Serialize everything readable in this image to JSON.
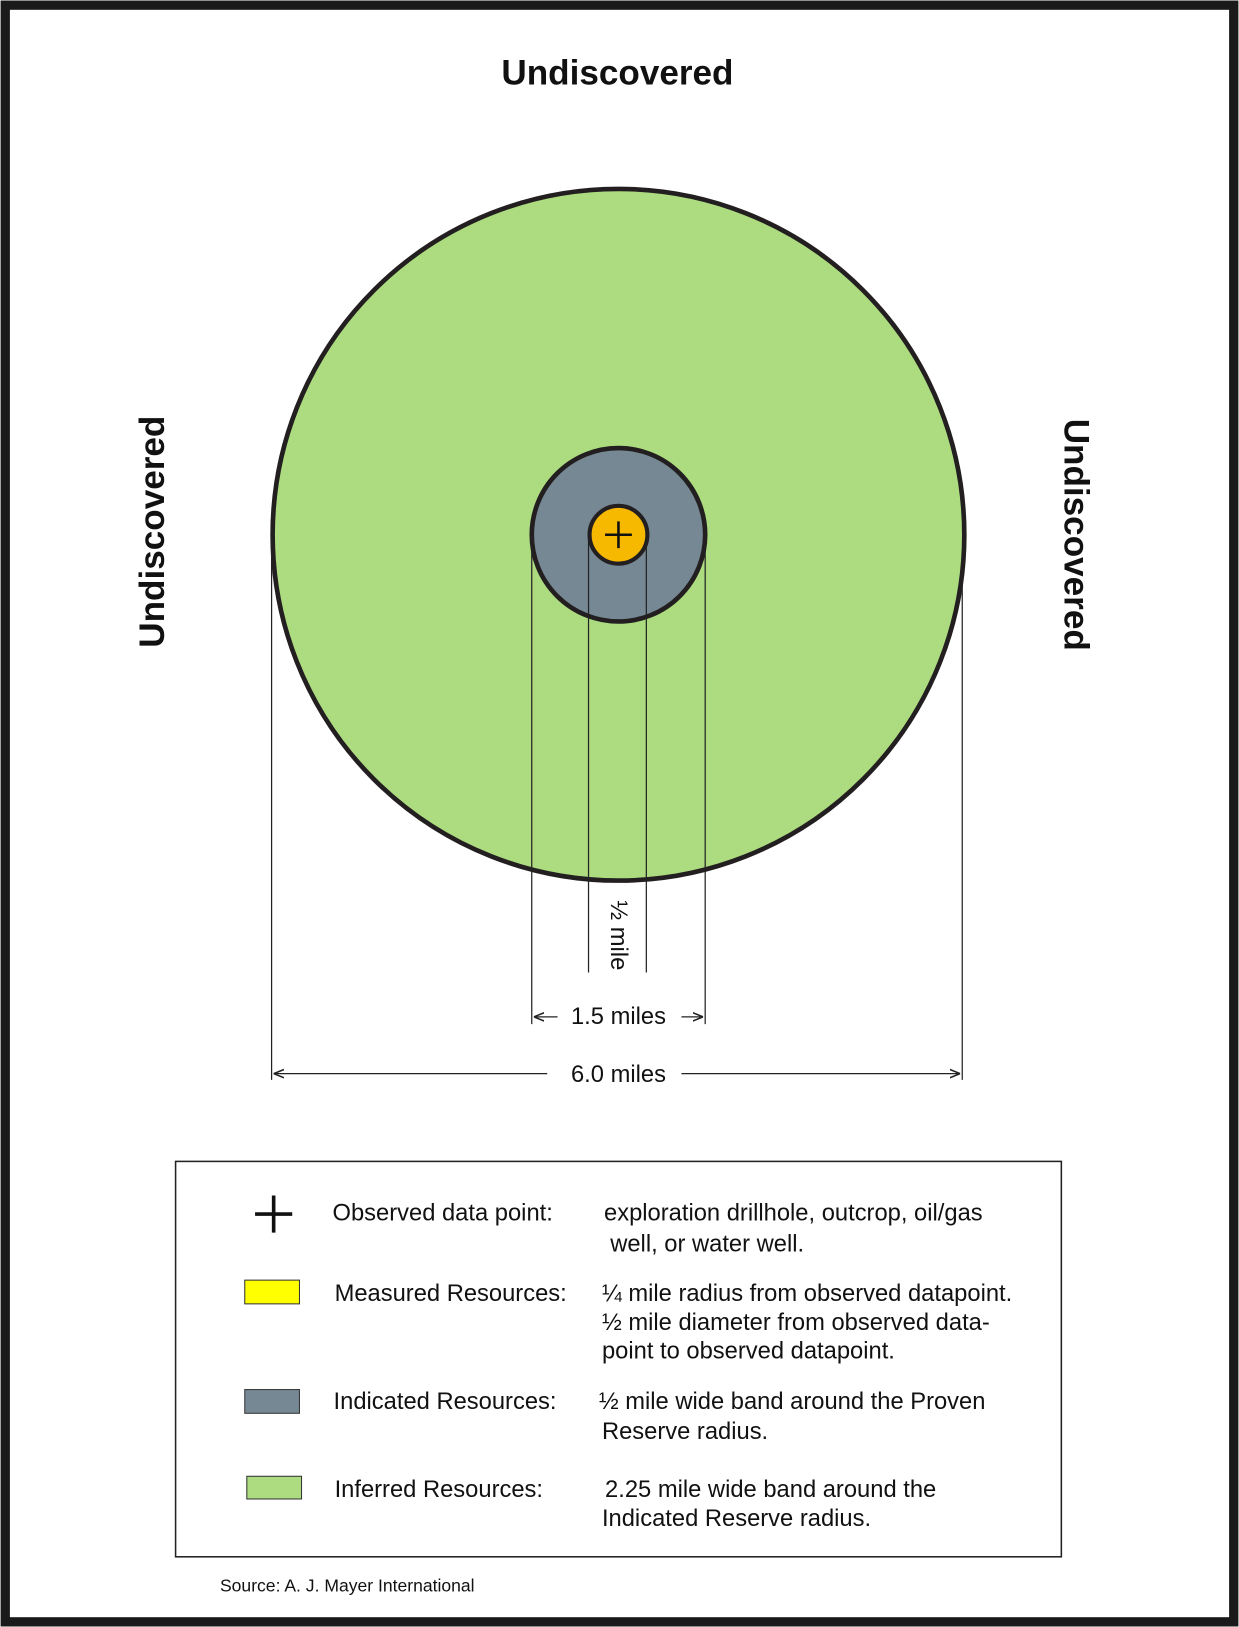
{
  "labels": {
    "top": "Undiscovered",
    "left": "Undiscovered",
    "right": "Undiscovered"
  },
  "dimensions": {
    "inner": "½ mile",
    "middle": "1.5 miles",
    "outer": "6.0 miles"
  },
  "legend": [
    {
      "term": "Observed data point:",
      "description": [
        "exploration drillhole, outcrop, oil/gas",
        "well, or water well."
      ]
    },
    {
      "term": "Measured Resources:",
      "description": [
        "¼ mile radius from observed datapoint.",
        "½ mile diameter from observed data-",
        "point to observed datapoint."
      ]
    },
    {
      "term": "Indicated Resources:",
      "description": [
        "½ mile wide band around the Proven",
        "Reserve radius."
      ]
    },
    {
      "term": "Inferred Resources:",
      "description": [
        "2.25 mile wide band around the",
        "Indicated Reserve radius."
      ]
    }
  ],
  "source": "Source: A. J. Mayer International"
}
